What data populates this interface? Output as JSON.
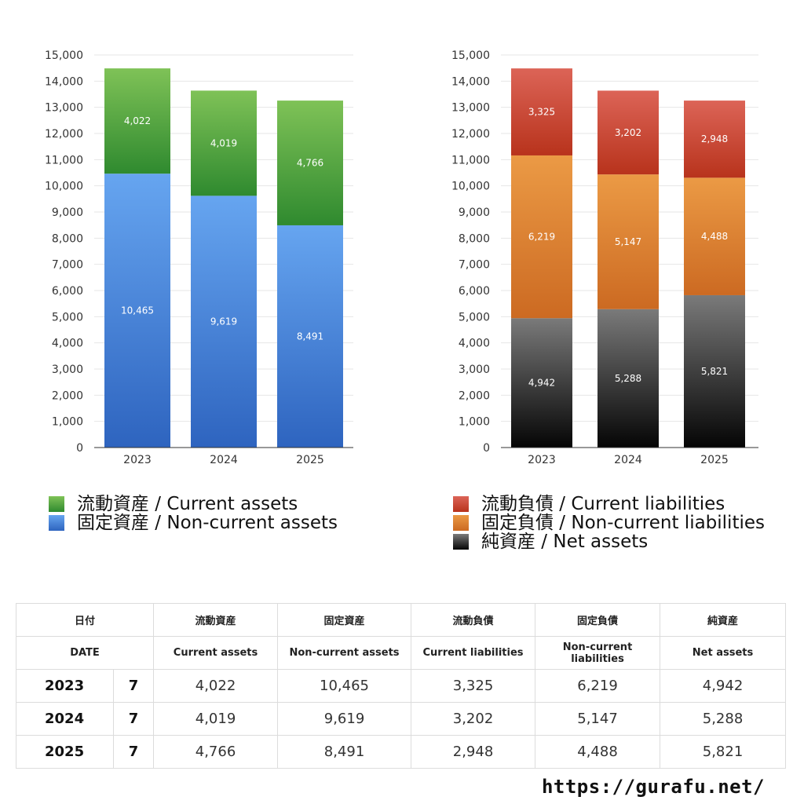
{
  "chart_data": [
    {
      "type": "bar",
      "stacked": true,
      "categories": [
        "2023",
        "2024",
        "2025"
      ],
      "ylim": [
        0,
        15000
      ],
      "yticks": [
        "0",
        "1,000",
        "2,000",
        "3,000",
        "4,000",
        "5,000",
        "6,000",
        "7,000",
        "8,000",
        "9,000",
        "10,000",
        "11,000",
        "12,000",
        "13,000",
        "14,000",
        "15,000"
      ],
      "grid": true,
      "legend_position": "bottom",
      "series": [
        {
          "name": "固定資産 / Non-current assets",
          "values": [
            10465,
            9619,
            8491
          ],
          "labels": [
            "10,465",
            "9,619",
            "8,491"
          ],
          "color_top": "#66a5f0",
          "color_bottom": "#2e64bf"
        },
        {
          "name": "流動資産 / Current assets",
          "values": [
            4022,
            4019,
            4766
          ],
          "labels": [
            "4,022",
            "4,019",
            "4,766"
          ],
          "color_top": "#7fc257",
          "color_bottom": "#2f8a2f"
        }
      ]
    },
    {
      "type": "bar",
      "stacked": true,
      "categories": [
        "2023",
        "2024",
        "2025"
      ],
      "ylim": [
        0,
        15000
      ],
      "yticks": [
        "0",
        "1,000",
        "2,000",
        "3,000",
        "4,000",
        "5,000",
        "6,000",
        "7,000",
        "8,000",
        "9,000",
        "10,000",
        "11,000",
        "12,000",
        "13,000",
        "14,000",
        "15,000"
      ],
      "grid": true,
      "legend_position": "bottom",
      "series": [
        {
          "name": "純資産 / Net assets",
          "values": [
            4942,
            5288,
            5821
          ],
          "labels": [
            "4,942",
            "5,288",
            "5,821"
          ],
          "color_top": "#7a7a7a",
          "color_bottom": "#050505"
        },
        {
          "name": "固定負債 / Non-current liabilities",
          "values": [
            6219,
            5147,
            4488
          ],
          "labels": [
            "6,219",
            "5,147",
            "4,488"
          ],
          "color_top": "#eb9a45",
          "color_bottom": "#cc6a22"
        },
        {
          "name": "流動負債 / Current liabilities",
          "values": [
            3325,
            3202,
            2948
          ],
          "labels": [
            "3,325",
            "3,202",
            "2,948"
          ],
          "color_top": "#dc6457",
          "color_bottom": "#b8331c"
        }
      ]
    }
  ],
  "legend_left": [
    {
      "label": "流動資産 / Current assets",
      "color": "#4fa53e"
    },
    {
      "label": "固定資産 / Non-current assets",
      "color": "#3f7fd8"
    }
  ],
  "legend_right": [
    {
      "label": "流動負債 / Current liabilities",
      "color": "#cc4a39"
    },
    {
      "label": "固定負債 / Non-current liabilities",
      "color": "#e08033"
    },
    {
      "label": "純資産 / Net assets",
      "color": "#3a3a3a"
    }
  ],
  "table": {
    "header_jp": [
      "日付",
      "流動資産",
      "固定資産",
      "流動負債",
      "固定負債",
      "純資産"
    ],
    "header_en": [
      "DATE",
      "Current assets",
      "Non-current assets",
      "Current liabilities",
      "Non-current liabilities",
      "Net assets"
    ],
    "rows": [
      {
        "year": "2023",
        "month": "7",
        "values": [
          "4,022",
          "10,465",
          "3,325",
          "6,219",
          "4,942"
        ]
      },
      {
        "year": "2024",
        "month": "7",
        "values": [
          "4,019",
          "9,619",
          "3,202",
          "5,147",
          "5,288"
        ]
      },
      {
        "year": "2025",
        "month": "7",
        "values": [
          "4,766",
          "8,491",
          "2,948",
          "4,488",
          "5,821"
        ]
      }
    ]
  },
  "footer": {
    "url": "https://gurafu.net/"
  }
}
